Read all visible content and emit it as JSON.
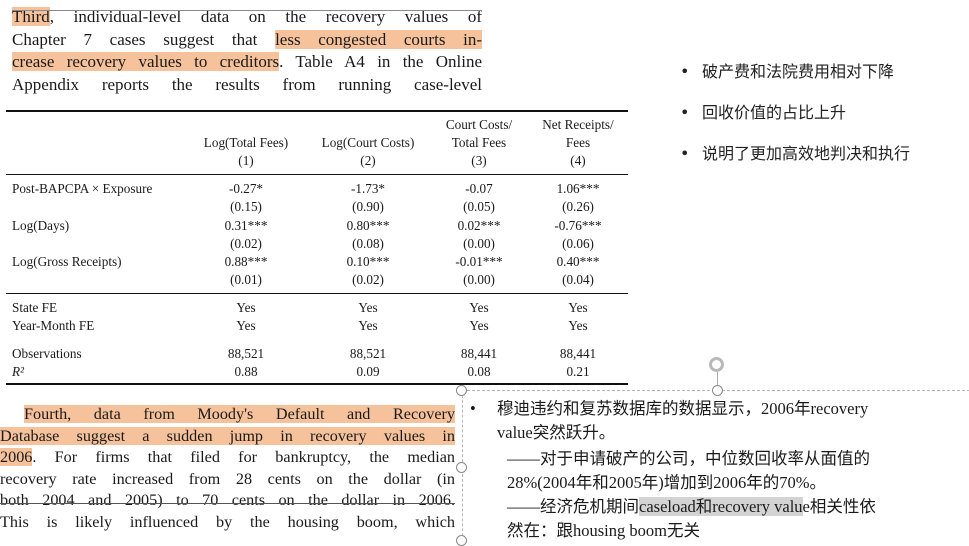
{
  "para1": {
    "line1_hl": "Third",
    "line1_rest": ", individual-level data on the recovery values of",
    "line2_pre": "Chapter 7 cases suggest that ",
    "line2_hl": "less congested courts in-",
    "line3_hl": "crease recovery values to creditors",
    "line3_rest": ". Table A4 in the Online",
    "line4": "Appendix reports the results from running case-level"
  },
  "table": {
    "columns": [
      {
        "h1": "",
        "h2": "Log(Total Fees)",
        "num": "(1)"
      },
      {
        "h1": "",
        "h2": "Log(Court Costs)",
        "num": "(2)"
      },
      {
        "h1": "Court Costs/",
        "h2": "Total Fees",
        "num": "(3)"
      },
      {
        "h1": "Net Receipts/",
        "h2": "Fees",
        "num": "(4)"
      }
    ],
    "rows": [
      {
        "label": "Post-BAPCPA × Exposure",
        "vals": [
          "-0.27*",
          "-1.73*",
          "-0.07",
          "1.06***"
        ],
        "se": [
          "(0.15)",
          "(0.90)",
          "(0.05)",
          "(0.26)"
        ]
      },
      {
        "label": "Log(Days)",
        "vals": [
          "0.31***",
          "0.80***",
          "0.02***",
          "-0.76***"
        ],
        "se": [
          "(0.02)",
          "(0.08)",
          "(0.00)",
          "(0.06)"
        ]
      },
      {
        "label": "Log(Gross Receipts)",
        "vals": [
          "0.88***",
          "0.10***",
          "-0.01***",
          "0.40***"
        ],
        "se": [
          "(0.01)",
          "(0.02)",
          "(0.00)",
          "(0.04)"
        ]
      }
    ],
    "fe": [
      {
        "label": "State FE",
        "vals": [
          "Yes",
          "Yes",
          "Yes",
          "Yes"
        ]
      },
      {
        "label": "Year-Month FE",
        "vals": [
          "Yes",
          "Yes",
          "Yes",
          "Yes"
        ]
      }
    ],
    "stats": [
      {
        "label": "Observations",
        "vals": [
          "88,521",
          "88,521",
          "88,441",
          "88,441"
        ]
      },
      {
        "label": "R²",
        "vals": [
          "0.88",
          "0.09",
          "0.08",
          "0.21"
        ]
      }
    ]
  },
  "bullets": [
    "破产费和法院费用相对下降",
    "回收价值的占比上升",
    "说明了更加高效地判决和执行"
  ],
  "para2": {
    "l1": "Fourth, data from Moody's Default and Recovery",
    "l2": "Database suggest a sudden jump in recovery values in",
    "l3_hl": "2006",
    "l3_rest": ". For firms that filed for bankruptcy, the median",
    "l4": "recovery rate increased from 28 cents on the dollar (in",
    "l5": "both 2004 and 2005) to 70 cents on the dollar in 2006.",
    "l6": "This is likely influenced by the housing boom, which"
  },
  "textbox": {
    "bullet": "•",
    "l1": "穆迪违约和复苏数据库的数据显示，2006年recovery",
    "l2": "value突然跃升。",
    "l3": "——对于申请破产的公司，中位数回收率从面值的",
    "l4": "28%(2004年和2005年)增加到2006年的70%。",
    "l5_pre": "——经济危机期间",
    "l5_sel": "caseload和recovery valu",
    "l5_rest": "e相关性依",
    "l6": "然在：跟housing boom无关"
  }
}
